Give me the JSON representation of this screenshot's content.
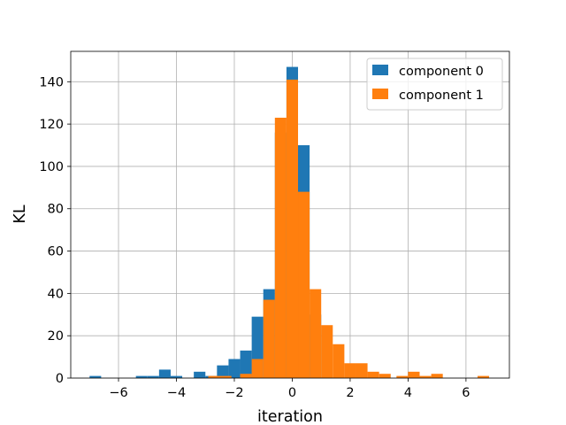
{
  "chart_data": {
    "type": "bar",
    "subtype": "overlapping-histogram",
    "title": "",
    "xlabel": "iteration",
    "ylabel": "KL",
    "xlim": [
      -7.65,
      7.5
    ],
    "ylim": [
      0,
      154.35
    ],
    "xticks": [
      -6,
      -4,
      -2,
      0,
      2,
      4,
      6
    ],
    "yticks": [
      0,
      20,
      40,
      60,
      80,
      100,
      120,
      140
    ],
    "grid": true,
    "legend_position": "top-right",
    "series": [
      {
        "name": "component 0",
        "color": "#1f77b4",
        "bins": [
          {
            "x0": -7.0,
            "x1": -6.6,
            "count": 1
          },
          {
            "x0": -5.4,
            "x1": -5.0,
            "count": 1
          },
          {
            "x0": -5.0,
            "x1": -4.6,
            "count": 1
          },
          {
            "x0": -4.6,
            "x1": -4.2,
            "count": 4
          },
          {
            "x0": -4.2,
            "x1": -3.8,
            "count": 1
          },
          {
            "x0": -3.4,
            "x1": -3.0,
            "count": 3
          },
          {
            "x0": -3.0,
            "x1": -2.6,
            "count": 1
          },
          {
            "x0": -2.6,
            "x1": -2.2,
            "count": 6
          },
          {
            "x0": -2.2,
            "x1": -1.8,
            "count": 9
          },
          {
            "x0": -1.8,
            "x1": -1.4,
            "count": 13
          },
          {
            "x0": -1.4,
            "x1": -1.0,
            "count": 29
          },
          {
            "x0": -1.0,
            "x1": -0.6,
            "count": 42
          },
          {
            "x0": -0.6,
            "x1": -0.2,
            "count": 116
          },
          {
            "x0": -0.2,
            "x1": 0.2,
            "count": 147
          },
          {
            "x0": 0.2,
            "x1": 0.6,
            "count": 110
          },
          {
            "x0": 0.6,
            "x1": 1.0,
            "count": 30
          }
        ]
      },
      {
        "name": "component 1",
        "color": "#ff7f0e",
        "bins": [
          {
            "x0": -2.9,
            "x1": -2.1,
            "count": 1
          },
          {
            "x0": -1.8,
            "x1": -1.4,
            "count": 2
          },
          {
            "x0": -1.4,
            "x1": -1.0,
            "count": 9
          },
          {
            "x0": -1.0,
            "x1": -0.6,
            "count": 37
          },
          {
            "x0": -0.6,
            "x1": -0.2,
            "count": 123
          },
          {
            "x0": -0.2,
            "x1": 0.2,
            "count": 141
          },
          {
            "x0": 0.2,
            "x1": 0.6,
            "count": 88
          },
          {
            "x0": 0.6,
            "x1": 1.0,
            "count": 42
          },
          {
            "x0": 1.0,
            "x1": 1.4,
            "count": 25
          },
          {
            "x0": 1.4,
            "x1": 1.8,
            "count": 16
          },
          {
            "x0": 1.8,
            "x1": 2.2,
            "count": 7
          },
          {
            "x0": 2.2,
            "x1": 2.6,
            "count": 7
          },
          {
            "x0": 2.6,
            "x1": 3.0,
            "count": 3
          },
          {
            "x0": 3.0,
            "x1": 3.4,
            "count": 2
          },
          {
            "x0": 3.6,
            "x1": 4.0,
            "count": 1
          },
          {
            "x0": 4.0,
            "x1": 4.4,
            "count": 3
          },
          {
            "x0": 4.4,
            "x1": 4.8,
            "count": 1
          },
          {
            "x0": 4.8,
            "x1": 5.2,
            "count": 2
          },
          {
            "x0": 6.4,
            "x1": 6.8,
            "count": 1
          }
        ]
      }
    ]
  }
}
